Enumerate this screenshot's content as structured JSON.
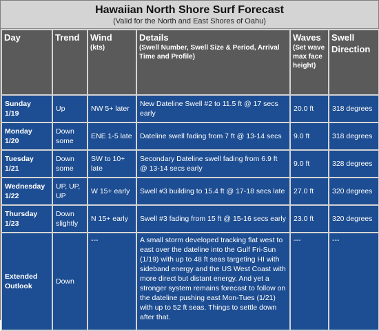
{
  "title": "Hawaiian North Shore Surf Forecast",
  "subtitle": "(Valid for the North and East Shores of Oahu)",
  "headers": {
    "day": "Day",
    "trend": "Trend",
    "wind": "Wind",
    "wind_sub": "(kts)",
    "details": "Details",
    "details_sub": "(Swell Number, Swell Size & Period, Arrival Time and Profile)",
    "waves": "Waves",
    "waves_sub": "(Set wave max face height)",
    "swell_direction": "Swell Direction"
  },
  "rows": [
    {
      "day": "Sunday",
      "date": "1/19",
      "trend": "Up",
      "wind": "NW 5+ later",
      "details": "New Dateline Swell #2 to 11.5 ft @ 17 secs early",
      "waves": "20.0 ft",
      "direction": "318 degrees"
    },
    {
      "day": "Monday",
      "date": "1/20",
      "trend": "Down some",
      "wind": "ENE 1-5 late",
      "details": "Dateline swell fading from 7 ft @ 13-14 secs",
      "waves": "9.0 ft",
      "direction": "318 degrees"
    },
    {
      "day": "Tuesday",
      "date": "1/21",
      "trend": "Down some",
      "wind": "SW to 10+ late",
      "details": "Secondary Dateline swell fading from 6.9 ft @ 13-14 secs early",
      "waves": "9.0 ft",
      "direction": "328 degrees"
    },
    {
      "day": "Wednesday",
      "date": "1/22",
      "trend": "UP, UP, UP",
      "wind": "W 15+ early",
      "details": "Swell #3 building to 15.4 ft @ 17-18 secs late",
      "waves": "27.0 ft",
      "direction": "320 degrees"
    },
    {
      "day": "Thursday",
      "date": "1/23",
      "trend": "Down slightly",
      "wind": "N 15+ early",
      "details": "Swell #3 fading from 15 ft @ 15-16 secs early",
      "waves": "23.0 ft",
      "direction": "320 degrees"
    }
  ],
  "extended": {
    "day": "Extended Outlook",
    "trend": "Down",
    "wind": "---",
    "details": "A small storm developed tracking flat west to east over the dateline into the Gulf Fri-Sun (1/19) with up to 48 ft seas targeting HI with sideband energy and the US West Coast with more direct but distant energy. And yet a stronger system remains forecast to follow on the dateline pushing east Mon-Tues (1/21) with up to 52 ft seas. Things to settle down after that.",
    "waves": "---",
    "direction": "---"
  }
}
